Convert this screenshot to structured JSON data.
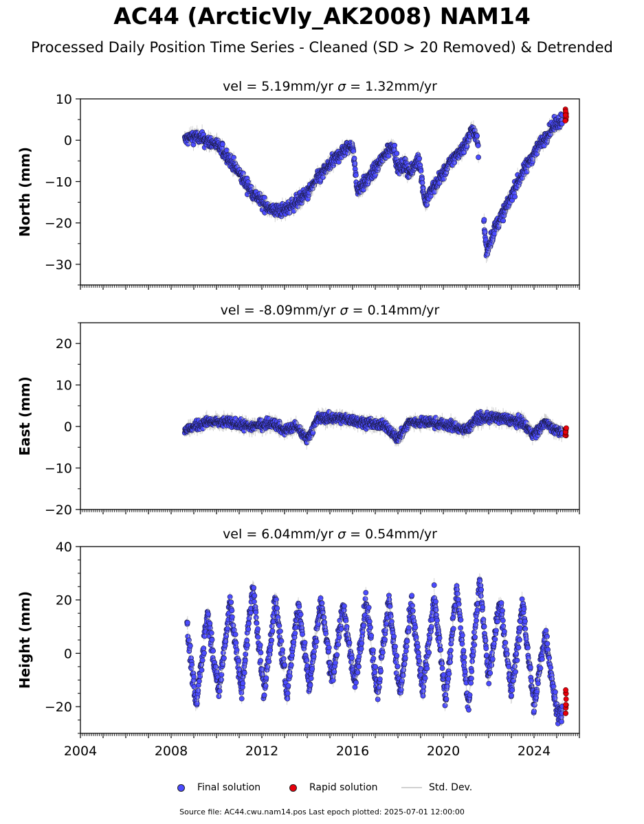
{
  "title": "AC44 (ArcticVly_AK2008) NAM14",
  "subtitle": "Processed Daily Position Time Series - Cleaned (SD > 20 Removed) & Detrended",
  "legend": {
    "final": "Final solution",
    "rapid": "Rapid solution",
    "std": "Std. Dev."
  },
  "footer": "Source file: AC44.cwu.nam14.pos  Last epoch plotted: 2025-07-01 12:00:00",
  "colors": {
    "final": "#4b4bff",
    "rapid": "#e8000b",
    "std": "#bfbfbf"
  },
  "chart_data": [
    {
      "type": "scatter",
      "title": "vel = 5.19mm/yr   σ = 1.32mm/yr",
      "vel_text": "vel = 5.19mm/yr",
      "sigma_text": "= 1.32mm/yr",
      "xlabel": "",
      "ylabel": "North (mm)",
      "xlim": [
        2004,
        2026
      ],
      "ylim": [
        -35,
        10
      ],
      "yticks": [
        -30,
        -20,
        -10,
        0,
        10
      ],
      "yticklabels": [
        "−30",
        "−20",
        "−10",
        "0",
        "10"
      ],
      "series": [
        {
          "name": "Final solution",
          "x": [
            2008.6,
            2009.0,
            2009.5,
            2010.0,
            2010.5,
            2011.0,
            2011.5,
            2012.0,
            2012.5,
            2013.0,
            2013.5,
            2014.0,
            2014.5,
            2015.0,
            2015.5,
            2016.0,
            2016.2,
            2016.6,
            2017.0,
            2017.5,
            2017.8,
            2018.0,
            2018.3,
            2018.6,
            2018.9,
            2019.2,
            2019.5,
            2020.0,
            2020.5,
            2021.0,
            2021.3,
            2021.5,
            2021.9,
            2022.3,
            2022.8,
            2023.2,
            2023.6,
            2024.0,
            2024.4,
            2024.8,
            2025.2
          ],
          "y": [
            0,
            1,
            0,
            -1,
            -4,
            -8,
            -12,
            -15,
            -17,
            -17,
            -15,
            -13,
            -9,
            -6,
            -3,
            -1,
            -12,
            -10,
            -7,
            -3,
            -1,
            -7,
            -6,
            -8,
            -4,
            -15,
            -12,
            -8,
            -4,
            -1,
            3,
            0,
            -27,
            -21,
            -16,
            -11,
            -7,
            -3,
            0,
            3,
            5
          ]
        },
        {
          "name": "Rapid solution",
          "x": [
            2025.4
          ],
          "y": [
            6
          ]
        }
      ]
    },
    {
      "type": "scatter",
      "title": "vel = -8.09mm/yr   σ = 0.14mm/yr",
      "vel_text": "vel = -8.09mm/yr",
      "sigma_text": "= 0.14mm/yr",
      "xlabel": "",
      "ylabel": "East (mm)",
      "xlim": [
        2004,
        2026
      ],
      "ylim": [
        -20,
        25
      ],
      "yticks": [
        -20,
        -10,
        0,
        10,
        20
      ],
      "yticklabels": [
        "−20",
        "−10",
        "0",
        "10",
        "20"
      ],
      "series": [
        {
          "name": "Final solution",
          "x": [
            2008.6,
            2009.5,
            2010.5,
            2011.5,
            2012.5,
            2013.0,
            2013.5,
            2014.0,
            2014.5,
            2015.5,
            2016.5,
            2017.5,
            2018.0,
            2018.5,
            2019.5,
            2020.5,
            2021.0,
            2021.5,
            2022.5,
            2023.5,
            2024.0,
            2024.5,
            2025.0
          ],
          "y": [
            -1,
            1,
            1,
            0,
            1,
            -1,
            0,
            -3,
            2,
            2,
            1,
            0,
            -3,
            1,
            1,
            0,
            -1,
            2,
            2,
            1,
            -2,
            1,
            -1
          ]
        },
        {
          "name": "Rapid solution",
          "x": [
            2025.4
          ],
          "y": [
            -1
          ]
        }
      ]
    },
    {
      "type": "scatter",
      "title": "vel = 6.04mm/yr   σ = 0.54mm/yr",
      "vel_text": "vel = 6.04mm/yr",
      "sigma_text": "= 0.54mm/yr",
      "xlabel": "",
      "ylabel": "Height (mm)",
      "xlim": [
        2004,
        2026
      ],
      "ylim": [
        -30,
        40
      ],
      "yticks": [
        -20,
        0,
        20,
        40
      ],
      "yticklabels": [
        "−20",
        "0",
        "20",
        "40"
      ],
      "xticks": [
        2004,
        2008,
        2012,
        2016,
        2020,
        2024
      ],
      "xticklabels": [
        "2004",
        "2008",
        "2012",
        "2016",
        "2020",
        "2024"
      ],
      "series": [
        {
          "name": "Final solution",
          "x": [
            2008.7,
            2009.1,
            2009.6,
            2010.1,
            2010.6,
            2011.1,
            2011.6,
            2012.1,
            2012.6,
            2013.1,
            2013.6,
            2014.1,
            2014.6,
            2015.1,
            2015.6,
            2016.1,
            2016.6,
            2017.1,
            2017.6,
            2018.1,
            2018.6,
            2019.1,
            2019.6,
            2020.1,
            2020.6,
            2021.1,
            2021.6,
            2022.0,
            2022.5,
            2023.0,
            2023.5,
            2024.0,
            2024.5,
            2025.0
          ],
          "y": [
            10,
            -20,
            15,
            -15,
            20,
            -15,
            25,
            -15,
            20,
            -15,
            18,
            -12,
            20,
            -10,
            18,
            -12,
            20,
            -15,
            20,
            -15,
            18,
            -15,
            22,
            -18,
            25,
            -20,
            28,
            -10,
            20,
            -15,
            18,
            -20,
            8,
            -22
          ]
        },
        {
          "name": "Rapid solution",
          "x": [
            2025.4
          ],
          "y": [
            -18
          ]
        }
      ]
    }
  ]
}
